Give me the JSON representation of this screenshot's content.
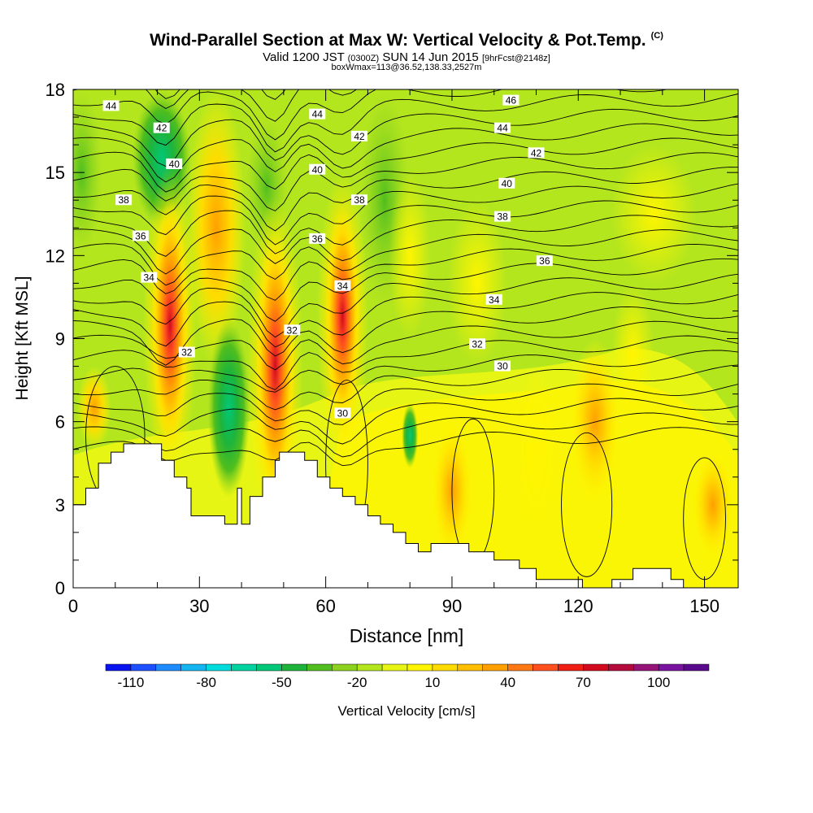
{
  "chart_data": {
    "type": "heatmap",
    "title": "Wind-Parallel Section at Max W: Vertical Velocity & Pot.Temp.",
    "title_mark": "(C)",
    "subtitle_main": "Valid 1200 JST",
    "subtitle_utc": "(0300Z)",
    "subtitle_date": "SUN 14 Jun 2015",
    "subtitle_fcst": "[9hrFcst@2148z]",
    "subtitle2": "boxWmax=113@36.52,138.33,2527m",
    "xlabel": "Distance [nm]",
    "ylabel": "Height [Kft MSL]",
    "xlim": [
      0,
      158
    ],
    "ylim": [
      0,
      18
    ],
    "xticks": [
      0,
      30,
      60,
      90,
      120,
      150
    ],
    "yticks": [
      0,
      3,
      6,
      9,
      12,
      15,
      18
    ],
    "colorbar": {
      "label": "Vertical Velocity [cm/s]",
      "tick_labels": [
        "-110",
        "-80",
        "-50",
        "-20",
        "10",
        "40",
        "70",
        "100"
      ],
      "tick_values": [
        -110,
        -80,
        -50,
        -20,
        10,
        40,
        70,
        100
      ],
      "colors": [
        "#0a14f0",
        "#1e50ff",
        "#1e8cff",
        "#14b4f0",
        "#00dcdc",
        "#00d2a0",
        "#00c878",
        "#1eb43c",
        "#50be1e",
        "#8cd21e",
        "#b4e61e",
        "#e6f514",
        "#fff500",
        "#ffdc00",
        "#ffbe00",
        "#ffa000",
        "#ff7814",
        "#ff501e",
        "#f01e14",
        "#d20a1e",
        "#b40a3c",
        "#961478",
        "#7814a0",
        "#5a0a8c"
      ]
    },
    "updrafts_cm_s": [
      {
        "x_nm": 23,
        "z_kft": 9.5,
        "w": 90
      },
      {
        "x_nm": 48,
        "z_kft": 8.0,
        "w": 113
      },
      {
        "x_nm": 64,
        "z_kft": 9.8,
        "w": 60
      }
    ],
    "downdrafts_cm_s": [
      {
        "x_nm": 37,
        "z_kft": 6.5,
        "w": -35
      }
    ],
    "contour_labels": [
      {
        "text": "44",
        "x": 9,
        "z": 17.4
      },
      {
        "text": "42",
        "x": 21,
        "z": 16.6
      },
      {
        "text": "40",
        "x": 24,
        "z": 15.3
      },
      {
        "text": "38",
        "x": 12,
        "z": 14.0
      },
      {
        "text": "36",
        "x": 16,
        "z": 12.7
      },
      {
        "text": "34",
        "x": 18,
        "z": 11.2
      },
      {
        "text": "32",
        "x": 27,
        "z": 8.5
      },
      {
        "text": "44",
        "x": 58,
        "z": 17.1
      },
      {
        "text": "42",
        "x": 68,
        "z": 16.3
      },
      {
        "text": "40",
        "x": 58,
        "z": 15.1
      },
      {
        "text": "38",
        "x": 68,
        "z": 14.0
      },
      {
        "text": "36",
        "x": 58,
        "z": 12.6
      },
      {
        "text": "34",
        "x": 64,
        "z": 10.9
      },
      {
        "text": "32",
        "x": 52,
        "z": 9.3
      },
      {
        "text": "30",
        "x": 64,
        "z": 6.3
      },
      {
        "text": "46",
        "x": 104,
        "z": 17.6
      },
      {
        "text": "44",
        "x": 102,
        "z": 16.6
      },
      {
        "text": "42",
        "x": 110,
        "z": 15.7
      },
      {
        "text": "40",
        "x": 103,
        "z": 14.6
      },
      {
        "text": "38",
        "x": 102,
        "z": 13.4
      },
      {
        "text": "36",
        "x": 112,
        "z": 11.8
      },
      {
        "text": "34",
        "x": 100,
        "z": 10.4
      },
      {
        "text": "32",
        "x": 96,
        "z": 8.8
      },
      {
        "text": "30",
        "x": 102,
        "z": 8.0
      }
    ],
    "terrain_kft": [
      [
        0,
        3.0
      ],
      [
        3,
        3.0
      ],
      [
        3,
        3.6
      ],
      [
        6,
        3.6
      ],
      [
        6,
        4.5
      ],
      [
        9,
        4.5
      ],
      [
        9,
        4.9
      ],
      [
        12,
        4.9
      ],
      [
        12,
        5.2
      ],
      [
        21,
        5.2
      ],
      [
        21,
        4.6
      ],
      [
        24,
        4.6
      ],
      [
        24,
        4.0
      ],
      [
        27,
        4.0
      ],
      [
        27,
        3.6
      ],
      [
        28,
        3.6
      ],
      [
        28,
        2.6
      ],
      [
        36,
        2.6
      ],
      [
        36,
        2.3
      ],
      [
        39,
        2.3
      ],
      [
        39,
        3.6
      ],
      [
        40,
        3.6
      ],
      [
        40,
        2.3
      ],
      [
        42,
        2.3
      ],
      [
        42,
        3.3
      ],
      [
        45,
        3.3
      ],
      [
        45,
        4.0
      ],
      [
        48,
        4.0
      ],
      [
        48,
        4.6
      ],
      [
        49,
        4.6
      ],
      [
        49,
        4.9
      ],
      [
        55,
        4.9
      ],
      [
        55,
        4.6
      ],
      [
        58,
        4.6
      ],
      [
        58,
        4.0
      ],
      [
        61,
        4.0
      ],
      [
        61,
        3.6
      ],
      [
        64,
        3.6
      ],
      [
        64,
        3.3
      ],
      [
        67,
        3.3
      ],
      [
        67,
        3.0
      ],
      [
        70,
        3.0
      ],
      [
        70,
        2.6
      ],
      [
        73,
        2.6
      ],
      [
        73,
        2.3
      ],
      [
        76,
        2.3
      ],
      [
        76,
        2.0
      ],
      [
        79,
        2.0
      ],
      [
        79,
        1.6
      ],
      [
        82,
        1.6
      ],
      [
        82,
        1.3
      ],
      [
        85,
        1.3
      ],
      [
        85,
        1.6
      ],
      [
        94,
        1.6
      ],
      [
        94,
        1.3
      ],
      [
        100,
        1.3
      ],
      [
        100,
        1.0
      ],
      [
        106,
        1.0
      ],
      [
        106,
        0.7
      ],
      [
        110,
        0.7
      ],
      [
        110,
        0.3
      ],
      [
        121,
        0.3
      ],
      [
        121,
        0.0
      ],
      [
        128,
        0.0
      ],
      [
        128,
        0.3
      ],
      [
        133,
        0.3
      ],
      [
        133,
        0.7
      ],
      [
        142,
        0.7
      ],
      [
        142,
        0.3
      ],
      [
        145,
        0.3
      ],
      [
        145,
        0.0
      ],
      [
        158,
        0.0
      ]
    ]
  }
}
